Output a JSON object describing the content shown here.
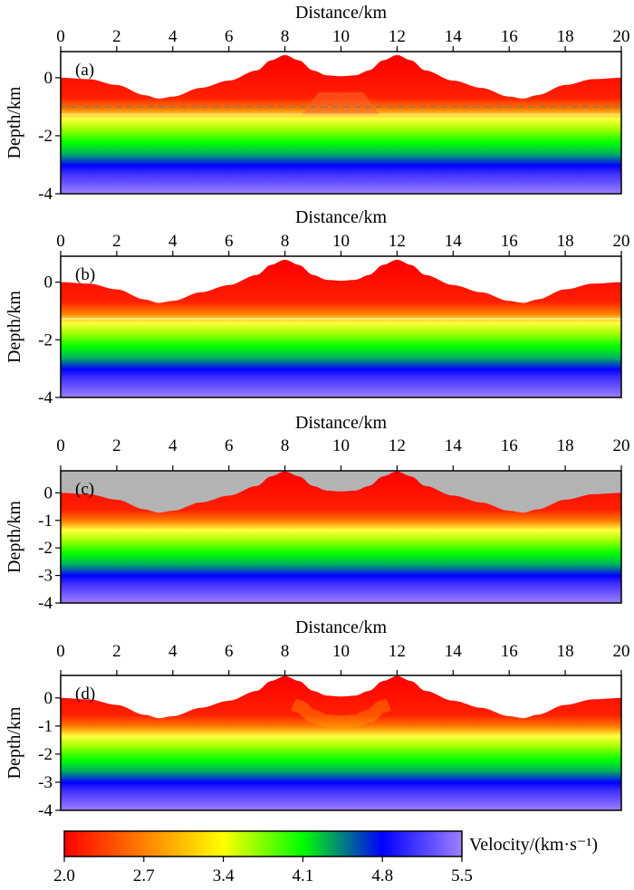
{
  "chart_data": {
    "type": "heatmap",
    "description_units": {
      "x": "km",
      "y": "km",
      "velocity": "km/s"
    },
    "panels": [
      {
        "id": "a",
        "label": "(a)",
        "xlabel": "Distance/km",
        "ylabel": "Depth/km",
        "xlim": [
          0,
          20
        ],
        "ylim": [
          -4,
          0.9
        ],
        "xticks": [
          "0",
          "2",
          "4",
          "6",
          "8",
          "10",
          "12",
          "14",
          "16",
          "18",
          "20"
        ],
        "yticks": [
          "0",
          "-2",
          "-4"
        ],
        "reference_line_depth": -1.0,
        "show_air": false,
        "variant": "layered"
      },
      {
        "id": "b",
        "label": "(b)",
        "xlabel": "Distance/km",
        "ylabel": "Depth/km",
        "xlim": [
          0,
          20
        ],
        "ylim": [
          -4,
          0.9
        ],
        "xticks": [
          "0",
          "2",
          "4",
          "6",
          "8",
          "10",
          "12",
          "14",
          "16",
          "18",
          "20"
        ],
        "yticks": [
          "0",
          "-2",
          "-4"
        ],
        "show_air": false,
        "variant": "flat-interface"
      },
      {
        "id": "c",
        "label": "(c)",
        "xlabel": "Distance/km",
        "ylabel": "Depth/km",
        "xlim": [
          0,
          20
        ],
        "ylim": [
          -4,
          0.8
        ],
        "xticks": [
          "0",
          "2",
          "4",
          "6",
          "8",
          "10",
          "12",
          "14",
          "16",
          "18",
          "20"
        ],
        "yticks": [
          "0",
          "-1",
          "-2",
          "-3",
          "-4"
        ],
        "show_air": true,
        "variant": "smooth"
      },
      {
        "id": "d",
        "label": "(d)",
        "xlabel": "Distance/km",
        "ylabel": "Depth/km",
        "xlim": [
          0,
          20
        ],
        "ylim": [
          -4,
          0.8
        ],
        "xticks": [
          "0",
          "2",
          "4",
          "6",
          "8",
          "10",
          "12",
          "14",
          "16",
          "18",
          "20"
        ],
        "yticks": [
          "0",
          "-1",
          "-2",
          "-3",
          "-4"
        ],
        "show_air": false,
        "variant": "inverted"
      }
    ],
    "topography": {
      "x": [
        0,
        1,
        2,
        3,
        3.5,
        4,
        5,
        6,
        7,
        7.5,
        8,
        8.5,
        9,
        9.5,
        10,
        10.5,
        11,
        11.5,
        12,
        12.5,
        13,
        14,
        15,
        16,
        16.5,
        17,
        18,
        19,
        20
      ],
      "elevation": [
        0,
        -0.05,
        -0.25,
        -0.6,
        -0.72,
        -0.65,
        -0.35,
        -0.1,
        0.25,
        0.6,
        0.78,
        0.6,
        0.25,
        0.08,
        0.05,
        0.08,
        0.25,
        0.6,
        0.78,
        0.6,
        0.25,
        -0.1,
        -0.35,
        -0.65,
        -0.72,
        -0.6,
        -0.25,
        -0.05,
        0
      ]
    },
    "colorbar": {
      "title": "Velocity/(km·s⁻¹)",
      "ticks": [
        "2.0",
        "2.7",
        "3.4",
        "4.1",
        "4.8",
        "5.5"
      ],
      "range": [
        2.0,
        5.5
      ],
      "colors": [
        "#ff0000",
        "#ff8000",
        "#ffff00",
        "#00ff00",
        "#0000ff",
        "#9d7fff"
      ]
    }
  }
}
